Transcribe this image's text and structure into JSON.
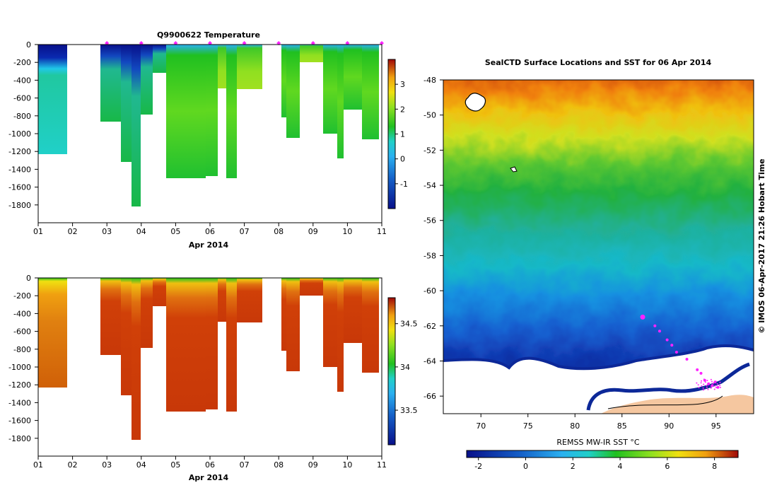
{
  "colors": {
    "deep_blue": "#08108a",
    "blue": "#1560c8",
    "light_blue": "#2ab0f0",
    "cyan": "#20d0c8",
    "green": "#20c020",
    "lime": "#90e020",
    "yellow": "#f0e010",
    "orange": "#f0a010",
    "red": "#d03808",
    "dark_red": "#a00808",
    "magenta": "#ff22ff",
    "land": "#f5c7a0"
  },
  "chart_data": [
    {
      "type": "heatmap",
      "id": "temperature_section",
      "title": "Q9900622  Temperature",
      "xlabel": "Apr 2014",
      "x_tick_labels": [
        "01",
        "02",
        "03",
        "04",
        "05",
        "06",
        "07",
        "08",
        "09",
        "10",
        "11"
      ],
      "xlim": [
        1,
        11
      ],
      "ylim": [
        -2000,
        0
      ],
      "y_tick_labels": [
        "0",
        "-200",
        "-400",
        "-600",
        "-800",
        "-1000",
        "-1200",
        "-1400",
        "-1600",
        "-1800"
      ],
      "colorbar": {
        "min": -2,
        "max": 4,
        "tick_labels": [
          "-1",
          "0",
          "1",
          "2",
          "3"
        ],
        "tick_values": [
          -1,
          0,
          1,
          2,
          3
        ]
      },
      "profile_markers_day": [
        3,
        4,
        5,
        6,
        7,
        8,
        9,
        10,
        11
      ],
      "profiles": [
        {
          "start": 1.0,
          "end": 1.85,
          "max_depth": 1240
        },
        {
          "start": 2.85,
          "end": 3.45,
          "max_depth": 870
        },
        {
          "start": 3.45,
          "end": 3.75,
          "max_depth": 1320
        },
        {
          "start": 3.75,
          "end": 4.0,
          "max_depth": 1810
        },
        {
          "start": 4.0,
          "end": 4.35,
          "max_depth": 790
        },
        {
          "start": 4.35,
          "end": 4.75,
          "max_depth": 310
        },
        {
          "start": 4.75,
          "end": 5.9,
          "max_depth": 1500
        },
        {
          "start": 5.9,
          "end": 6.3,
          "max_depth": 1480
        },
        {
          "start": 6.3,
          "end": 6.55,
          "max_depth": 490
        },
        {
          "start": 6.55,
          "end": 6.85,
          "max_depth": 1500
        },
        {
          "start": 6.85,
          "end": 7.6,
          "max_depth": 500
        },
        {
          "start": 8.1,
          "end": 8.3,
          "max_depth": 820
        },
        {
          "start": 8.3,
          "end": 8.7,
          "max_depth": 1050
        },
        {
          "start": 8.7,
          "end": 9.35,
          "max_depth": 200
        },
        {
          "start": 9.35,
          "end": 9.8,
          "max_depth": 1000
        },
        {
          "start": 9.8,
          "end": 10.0,
          "max_depth": 1280
        },
        {
          "start": 10.0,
          "end": 10.5,
          "max_depth": 730
        },
        {
          "start": 10.5,
          "end": 10.95,
          "max_depth": 1060
        }
      ]
    },
    {
      "type": "heatmap",
      "id": "salinity_section",
      "title": "",
      "xlabel": "Apr 2014",
      "x_tick_labels": [
        "01",
        "02",
        "03",
        "04",
        "05",
        "06",
        "07",
        "08",
        "09",
        "10",
        "11"
      ],
      "xlim": [
        1,
        11
      ],
      "ylim": [
        -2000,
        0
      ],
      "y_tick_labels": [
        "0",
        "-200",
        "-400",
        "-600",
        "-800",
        "-1000",
        "-1200",
        "-1400",
        "-1600",
        "-1800"
      ],
      "colorbar": {
        "min": 33.1,
        "max": 34.8,
        "tick_labels": [
          "33.5",
          "34",
          "34.5"
        ],
        "tick_values": [
          33.5,
          34.0,
          34.5
        ]
      }
    },
    {
      "type": "heatmap",
      "id": "sst_map",
      "title": "SealCTD Surface Locations and SST for 06 Apr 2014",
      "xlabel": "",
      "xlim": [
        66,
        99
      ],
      "ylim": [
        -67,
        -48
      ],
      "x_tick_labels": [
        "70",
        "75",
        "80",
        "85",
        "90",
        "95"
      ],
      "x_tick_values": [
        70,
        75,
        80,
        85,
        90,
        95
      ],
      "y_tick_labels": [
        "-48",
        "-50",
        "-52",
        "-54",
        "-56",
        "-58",
        "-60",
        "-62",
        "-64",
        "-66"
      ],
      "y_tick_values": [
        -48,
        -50,
        -52,
        -54,
        -56,
        -58,
        -60,
        -62,
        -64,
        -66
      ],
      "colorbar": {
        "label": "REMSS MW-IR SST °C",
        "min": -2.5,
        "max": 9,
        "tick_labels": [
          "-2",
          "0",
          "2",
          "4",
          "6",
          "8"
        ],
        "tick_values": [
          -2,
          0,
          2,
          4,
          6,
          8
        ]
      },
      "seal_locations": [
        {
          "lon": 87.2,
          "lat": -61.5,
          "size": "large"
        },
        {
          "lon": 88.5,
          "lat": -62.0
        },
        {
          "lon": 89.0,
          "lat": -62.3
        },
        {
          "lon": 89.8,
          "lat": -62.8
        },
        {
          "lon": 90.3,
          "lat": -63.1
        },
        {
          "lon": 90.8,
          "lat": -63.5
        },
        {
          "lon": 91.9,
          "lat": -63.9
        },
        {
          "lon": 93.0,
          "lat": -64.5
        },
        {
          "lon": 93.4,
          "lat": -64.7
        },
        {
          "lon": 93.8,
          "lat": -65.1
        },
        {
          "lon": 94.2,
          "lat": -65.3
        },
        {
          "lon": 94.6,
          "lat": -65.4
        },
        {
          "lon": 94.9,
          "lat": -65.2
        },
        {
          "lon": 95.2,
          "lat": -65.5
        }
      ]
    }
  ],
  "credit": "© IMOS 06-Apr-2017 21:26 Hobart Time"
}
